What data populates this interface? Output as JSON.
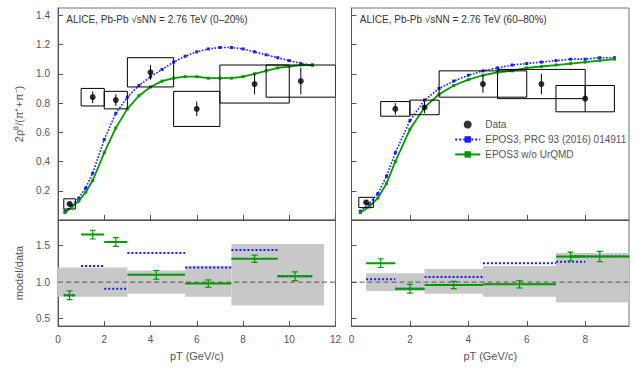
{
  "chart_data": [
    {
      "type": "line",
      "annotation": "ALICE, Pb-Pb √sNN = 2.76 TeV (0–20%)",
      "ylabel": "2ρ⁰/(π⁺+π⁻)",
      "xlim": [
        0,
        12
      ],
      "xticks": [
        0,
        2,
        4,
        6,
        8,
        10,
        12
      ],
      "ylim": [
        0.0,
        1.45
      ],
      "yticks": [
        0.2,
        0.4,
        0.6,
        0.8,
        {
          "value": 1.0,
          "label": "1.0"
        },
        1.2,
        1.4
      ],
      "tick_labels": "y",
      "grid": false,
      "series": [
        {
          "type": "scatter",
          "color": "#000000",
          "marker": "circle",
          "x": [
            0.5,
            1.5,
            2.5,
            4.0,
            6.0,
            8.5,
            10.5
          ],
          "values": [
            0.11,
            0.84,
            0.82,
            1.01,
            0.76,
            0.93,
            0.95
          ],
          "yerr": [
            0.015,
            0.04,
            0.04,
            0.05,
            0.05,
            0.07,
            0.09
          ],
          "syst_xw": [
            0.5,
            1.0,
            1.0,
            2.0,
            2.0,
            3.0,
            3.0
          ],
          "syst_yh": [
            0.07,
            0.12,
            0.12,
            0.2,
            0.24,
            0.26,
            0.22
          ]
        },
        {
          "type": "line",
          "color": "#1a1aff",
          "line_style": "dotted",
          "marker": "square",
          "x": [
            0.3,
            0.6,
            0.9,
            1.2,
            1.5,
            2.0,
            2.5,
            3.0,
            3.5,
            4.0,
            4.5,
            5.0,
            5.5,
            6.0,
            6.5,
            7.0,
            7.5,
            8.0,
            8.5,
            9.0,
            9.5,
            10.0,
            10.5,
            11.0
          ],
          "values": [
            0.06,
            0.1,
            0.15,
            0.22,
            0.32,
            0.55,
            0.73,
            0.84,
            0.92,
            0.98,
            1.03,
            1.08,
            1.12,
            1.15,
            1.17,
            1.18,
            1.18,
            1.17,
            1.15,
            1.13,
            1.11,
            1.09,
            1.07,
            1.06
          ]
        },
        {
          "type": "line",
          "color": "#009900",
          "line_style": "solid",
          "marker": "square",
          "x": [
            0.3,
            0.6,
            0.9,
            1.2,
            1.5,
            2.0,
            2.5,
            3.0,
            3.5,
            4.0,
            4.5,
            5.0,
            5.5,
            6.0,
            6.5,
            7.0,
            7.5,
            8.0,
            8.5,
            9.0,
            9.5,
            10.0,
            10.5,
            11.0
          ],
          "values": [
            0.05,
            0.09,
            0.13,
            0.19,
            0.27,
            0.46,
            0.63,
            0.76,
            0.85,
            0.91,
            0.95,
            0.97,
            0.98,
            0.98,
            0.97,
            0.97,
            0.97,
            0.98,
            1.0,
            1.02,
            1.04,
            1.05,
            1.06,
            1.06
          ]
        }
      ]
    },
    {
      "type": "line",
      "annotation": "ALICE, Pb-Pb √sNN = 2.76 TeV (60–80%)",
      "xlim": [
        0,
        9.5
      ],
      "xticks": [
        0,
        2,
        4,
        6,
        8
      ],
      "ylim": [
        0.0,
        1.45
      ],
      "yticks": [
        0.2,
        0.4,
        0.6,
        0.8,
        {
          "value": 1.0,
          "label": "1.0"
        },
        1.2,
        1.4
      ],
      "tick_labels": false,
      "grid": false,
      "legend": "center right",
      "series": [
        {
          "name": "Data",
          "type": "scatter",
          "color": "#000000",
          "marker": "circle",
          "x": [
            0.5,
            1.5,
            2.5,
            4.5,
            6.5,
            8.0
          ],
          "values": [
            0.12,
            0.76,
            0.77,
            0.93,
            0.93,
            0.83
          ],
          "yerr": [
            0.015,
            0.04,
            0.04,
            0.06,
            0.07,
            0.09
          ],
          "syst_xw": [
            0.5,
            1.0,
            1.0,
            3.0,
            3.0,
            2.0
          ],
          "syst_yh": [
            0.07,
            0.1,
            0.1,
            0.18,
            0.2,
            0.18
          ]
        },
        {
          "name": "EPOS3, PRC 93 (2016) 014911",
          "type": "line",
          "color": "#1a1aff",
          "line_style": "dotted",
          "marker": "square",
          "x": [
            0.3,
            0.6,
            0.9,
            1.2,
            1.5,
            2.0,
            2.5,
            3.0,
            3.5,
            4.0,
            4.5,
            5.0,
            5.5,
            6.0,
            6.5,
            7.0,
            7.5,
            8.0,
            8.5,
            9.0
          ],
          "values": [
            0.06,
            0.11,
            0.18,
            0.3,
            0.46,
            0.68,
            0.82,
            0.9,
            0.95,
            0.99,
            1.02,
            1.04,
            1.06,
            1.07,
            1.08,
            1.09,
            1.1,
            1.1,
            1.11,
            1.11
          ]
        },
        {
          "name": "EPOS3 w/o UrQMD",
          "type": "line",
          "color": "#009900",
          "line_style": "solid",
          "marker": "square",
          "x": [
            0.3,
            0.6,
            0.9,
            1.2,
            1.5,
            2.0,
            2.5,
            3.0,
            3.5,
            4.0,
            4.5,
            5.0,
            5.5,
            6.0,
            6.5,
            7.0,
            7.5,
            8.0,
            8.5,
            9.0
          ],
          "values": [
            0.05,
            0.09,
            0.15,
            0.25,
            0.4,
            0.62,
            0.77,
            0.86,
            0.92,
            0.96,
            0.99,
            1.01,
            1.02,
            1.04,
            1.05,
            1.06,
            1.07,
            1.08,
            1.09,
            1.1
          ]
        }
      ]
    },
    {
      "type": "segments",
      "ylabel": "model/data",
      "xlabel": "pT (GeV/c)",
      "xlim": [
        0,
        12
      ],
      "xticks": [
        0,
        2,
        4,
        6,
        8,
        10,
        12
      ],
      "ylim": [
        0.4,
        1.85
      ],
      "yticks": [
        0.5,
        {
          "value": 1.0,
          "label": "1.0"
        },
        1.5
      ],
      "grid": false,
      "series": [
        {
          "type": "band",
          "color": "#c8c8c8",
          "values": [
            [
              0.0,
              3.0,
              0.8,
              1.2
            ],
            [
              3.0,
              5.5,
              0.84,
              1.16
            ],
            [
              5.5,
              7.5,
              0.8,
              1.22
            ],
            [
              7.5,
              11.5,
              0.68,
              1.52
            ]
          ]
        },
        {
          "type": "hline",
          "color": "#555555",
          "line_style": "dashed",
          "values": [
            1.0
          ]
        },
        {
          "type": "segments",
          "color": "#1a1aff",
          "line_style": "dotted",
          "values": [
            [
              0.25,
              0.75,
              0.82
            ],
            [
              1.0,
              2.0,
              1.22
            ],
            [
              2.0,
              3.0,
              0.91
            ],
            [
              3.0,
              5.5,
              1.4
            ],
            [
              5.5,
              7.5,
              1.2
            ],
            [
              7.5,
              9.5,
              1.44
            ],
            [
              9.5,
              11.0,
              1.08
            ]
          ]
        },
        {
          "type": "segments",
          "color": "#009900",
          "line_style": "solid",
          "values": [
            [
              0.25,
              0.75,
              0.82
            ],
            [
              1.0,
              2.0,
              1.65
            ],
            [
              2.0,
              3.0,
              1.55
            ],
            [
              3.0,
              5.5,
              1.1
            ],
            [
              5.5,
              7.5,
              0.98
            ],
            [
              7.5,
              9.5,
              1.32
            ],
            [
              9.5,
              11.0,
              1.08
            ]
          ],
          "yerr": [
            0.06,
            0.06,
            0.06,
            0.06,
            0.05,
            0.05,
            0.06
          ]
        }
      ]
    },
    {
      "type": "segments",
      "xlabel": "pT (GeV/c)",
      "xlim": [
        0,
        9.5
      ],
      "xticks": [
        0,
        2,
        4,
        6,
        8
      ],
      "ylim": [
        0.4,
        1.85
      ],
      "yticks": [
        0.5,
        {
          "value": 1.0,
          "label": "1.0"
        },
        1.5
      ],
      "tick_labels": "x",
      "grid": false,
      "series": [
        {
          "type": "band",
          "color": "#c8c8c8",
          "values": [
            [
              0.5,
              2.5,
              0.88,
              1.12
            ],
            [
              2.5,
              4.5,
              0.84,
              1.18
            ],
            [
              4.5,
              7.0,
              0.8,
              1.22
            ],
            [
              7.0,
              9.5,
              0.72,
              1.4
            ]
          ]
        },
        {
          "type": "hline",
          "color": "#555555",
          "line_style": "dashed",
          "values": [
            1.0
          ]
        },
        {
          "type": "segments",
          "color": "#1a1aff",
          "line_style": "dotted",
          "values": [
            [
              0.5,
              1.5,
              1.04
            ],
            [
              1.5,
              2.5,
              0.91
            ],
            [
              2.5,
              4.5,
              1.07
            ],
            [
              4.5,
              7.0,
              1.26
            ],
            [
              7.0,
              8.0,
              1.28
            ],
            [
              7.5,
              9.5,
              1.35
            ]
          ]
        },
        {
          "type": "segments",
          "color": "#009900",
          "line_style": "solid",
          "values": [
            [
              0.5,
              1.5,
              1.26
            ],
            [
              1.5,
              2.5,
              0.91
            ],
            [
              2.5,
              4.5,
              0.96
            ],
            [
              4.5,
              7.0,
              0.97
            ],
            [
              7.0,
              8.0,
              1.35
            ],
            [
              7.5,
              9.5,
              1.35
            ]
          ],
          "yerr": [
            0.06,
            0.06,
            0.05,
            0.05,
            0.06,
            0.07
          ]
        }
      ]
    }
  ]
}
